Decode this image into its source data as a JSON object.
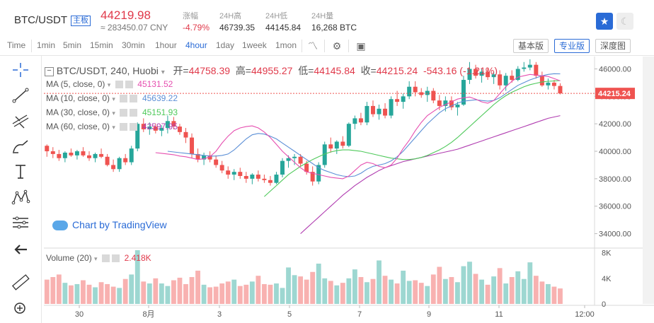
{
  "header": {
    "pair": "BTC/USDT",
    "badge": "主板",
    "price": "44219.98",
    "price_cny": "≈ 283450.07 CNY",
    "stats": [
      {
        "label": "涨幅",
        "value": "-4.79%"
      },
      {
        "label": "24H高",
        "value": "46739.35"
      },
      {
        "label": "24H低",
        "value": "44145.84"
      },
      {
        "label": "24H量",
        "value": "16,268 BTC"
      }
    ],
    "favorite_icon": "star-icon",
    "theme_icon": "moon-icon"
  },
  "toolbar": {
    "timeframes": [
      "Time",
      "1min",
      "5min",
      "15min",
      "30min",
      "1hour",
      "4hour",
      "1day",
      "1week",
      "1mon"
    ],
    "active_timeframe": "4hour",
    "views": [
      "基本版",
      "专业版",
      "深度图"
    ],
    "active_view": "专业版"
  },
  "sidebar": {
    "tools": [
      "crosshair-icon",
      "trendline-icon",
      "fib-icon",
      "brush-icon",
      "text-icon",
      "pattern-icon",
      "measure-icon",
      "back-icon",
      "ruler-icon",
      "zoom-icon"
    ]
  },
  "legend": {
    "symbol": "BTC/USDT, 240, Huobi",
    "open_label": "开=",
    "open": "44758.39",
    "high_label": "高=",
    "high": "44955.27",
    "low_label": "低=",
    "low": "44145.84",
    "close_label": "收=",
    "close": "44215.24",
    "change": "-543.16 (-1.21%)",
    "ma": [
      {
        "label": "MA (5, close, 0)",
        "value": "45131.52",
        "color": "#e64fb0"
      },
      {
        "label": "MA (10, close, 0)",
        "value": "45639.22",
        "color": "#5b8fd6"
      },
      {
        "label": "MA (30, close, 0)",
        "value": "45151.93",
        "color": "#4ec95a"
      },
      {
        "label": "MA (60, close, 0)",
        "value": "42597.95",
        "color": "#b03cb0"
      }
    ],
    "volume_label": "Volume (20)",
    "volume_value": "2.418K"
  },
  "watermark": "Chart by TradingView",
  "colors": {
    "up": "#26a69a",
    "down": "#ef5350",
    "accent": "#2a6bd6"
  },
  "chart_data": {
    "type": "candlestick",
    "y_axis": {
      "ticks": [
        "46000.00",
        "44000.00",
        "42000.00",
        "40000.00",
        "38000.00",
        "36000.00",
        "34000.00"
      ],
      "range": [
        33000,
        46900
      ]
    },
    "last_price_label": "44215.24",
    "x_axis": {
      "ticks": [
        "30",
        "8月",
        "3",
        "5",
        "7",
        "9",
        "11",
        "12:00"
      ]
    },
    "volume_axis": {
      "ticks": [
        "8K",
        "4K",
        "0"
      ],
      "range": [
        0,
        8400
      ]
    },
    "candles": [
      [
        40400,
        40500,
        39600,
        40000
      ],
      [
        40000,
        40300,
        39500,
        39800
      ],
      [
        39800,
        40100,
        39300,
        39500
      ],
      [
        39500,
        40000,
        39200,
        39900
      ],
      [
        39900,
        40200,
        39600,
        39700
      ],
      [
        39700,
        40100,
        39400,
        40000
      ],
      [
        40000,
        40300,
        39600,
        39700
      ],
      [
        39700,
        40000,
        39300,
        39500
      ],
      [
        39500,
        39900,
        39200,
        39800
      ],
      [
        39800,
        40200,
        39500,
        39600
      ],
      [
        39600,
        39800,
        38900,
        39000
      ],
      [
        39000,
        39400,
        38500,
        38700
      ],
      [
        38700,
        39600,
        38500,
        39500
      ],
      [
        39500,
        39800,
        39000,
        39200
      ],
      [
        39200,
        40400,
        39000,
        40200
      ],
      [
        40200,
        42100,
        40000,
        42000
      ],
      [
        42000,
        42400,
        41400,
        41600
      ],
      [
        41600,
        42100,
        41200,
        41800
      ],
      [
        41800,
        42000,
        41300,
        41500
      ],
      [
        41500,
        41900,
        41100,
        41700
      ],
      [
        41700,
        42600,
        41300,
        42200
      ],
      [
        42200,
        42500,
        41600,
        41800
      ],
      [
        41800,
        42000,
        41200,
        41400
      ],
      [
        41400,
        41700,
        40600,
        41000
      ],
      [
        41000,
        41300,
        39500,
        39800
      ],
      [
        39800,
        40200,
        39200,
        39400
      ],
      [
        39400,
        39900,
        39000,
        39700
      ],
      [
        39700,
        40000,
        39200,
        39400
      ],
      [
        39400,
        39700,
        38800,
        39000
      ],
      [
        39000,
        39300,
        38400,
        38600
      ],
      [
        38600,
        38900,
        38000,
        38300
      ],
      [
        38300,
        38700,
        37900,
        38500
      ],
      [
        38500,
        38800,
        38000,
        38200
      ],
      [
        38200,
        38500,
        37700,
        38000
      ],
      [
        38000,
        38400,
        37600,
        38300
      ],
      [
        38300,
        38600,
        37800,
        38000
      ],
      [
        38000,
        38300,
        37700,
        37900
      ],
      [
        37900,
        38200,
        37500,
        37700
      ],
      [
        37700,
        38500,
        37600,
        38300
      ],
      [
        38300,
        39500,
        38100,
        39300
      ],
      [
        39300,
        39700,
        38800,
        39500
      ],
      [
        39500,
        39800,
        39000,
        39600
      ],
      [
        39600,
        39800,
        38900,
        39100
      ],
      [
        39100,
        39300,
        38300,
        38500
      ],
      [
        38500,
        38900,
        37500,
        37800
      ],
      [
        37800,
        39200,
        37600,
        39000
      ],
      [
        39000,
        40700,
        38800,
        40500
      ],
      [
        40500,
        41000,
        39900,
        40200
      ],
      [
        40200,
        40800,
        39800,
        40700
      ],
      [
        40700,
        41100,
        40200,
        40400
      ],
      [
        40400,
        42100,
        40300,
        42000
      ],
      [
        42000,
        42600,
        41600,
        42400
      ],
      [
        42400,
        42800,
        41900,
        42100
      ],
      [
        42100,
        43600,
        41900,
        43300
      ],
      [
        43300,
        43700,
        42500,
        42700
      ],
      [
        42700,
        43400,
        42300,
        43100
      ],
      [
        43100,
        43500,
        42400,
        42600
      ],
      [
        42600,
        44000,
        42400,
        43800
      ],
      [
        43800,
        44400,
        43300,
        43600
      ],
      [
        43600,
        44200,
        43100,
        44000
      ],
      [
        44000,
        45100,
        43800,
        44700
      ],
      [
        44700,
        45100,
        44000,
        44300
      ],
      [
        44300,
        44600,
        43900,
        44100
      ],
      [
        44100,
        44700,
        43600,
        44400
      ],
      [
        44400,
        44600,
        43500,
        43700
      ],
      [
        43700,
        44100,
        43000,
        43300
      ],
      [
        43300,
        44000,
        42900,
        43700
      ],
      [
        43700,
        44000,
        43000,
        43200
      ],
      [
        43200,
        43600,
        42600,
        43400
      ],
      [
        43400,
        45500,
        43300,
        45200
      ],
      [
        45200,
        46500,
        44900,
        46000
      ],
      [
        46000,
        46300,
        45300,
        45500
      ],
      [
        45500,
        46000,
        45000,
        45800
      ],
      [
        45800,
        46100,
        45200,
        45400
      ],
      [
        45400,
        45800,
        44900,
        45600
      ],
      [
        45600,
        45900,
        44500,
        44800
      ],
      [
        44800,
        45700,
        44400,
        45500
      ],
      [
        45500,
        45900,
        45000,
        45200
      ],
      [
        45200,
        46200,
        45100,
        46000
      ],
      [
        46000,
        46500,
        45800,
        46100
      ],
      [
        46100,
        46700,
        45900,
        46300
      ],
      [
        46300,
        46500,
        45300,
        45500
      ],
      [
        45500,
        45800,
        44700,
        44800
      ],
      [
        44800,
        45300,
        44500,
        45000
      ],
      [
        45000,
        45200,
        44500,
        44758
      ],
      [
        44758,
        44955,
        44146,
        44215
      ]
    ],
    "volumes": [
      3800,
      4200,
      4600,
      3300,
      2900,
      3100,
      3700,
      3000,
      2600,
      3400,
      3100,
      2700,
      2500,
      3900,
      4600,
      8400,
      3500,
      3200,
      4000,
      3200,
      2800,
      3700,
      4100,
      3100,
      4200,
      5200,
      3000,
      2600,
      2700,
      3200,
      3500,
      3800,
      2800,
      3000,
      3500,
      4400,
      3100,
      3000,
      3200,
      2500,
      5700,
      4500,
      4300,
      3800,
      5000,
      6300,
      4000,
      3600,
      2900,
      3300,
      4000,
      5400,
      4200,
      3400,
      3900,
      6800,
      4400,
      3800,
      3200,
      5200,
      3600,
      3700,
      3300,
      2800,
      4600,
      5800,
      3900,
      4200,
      3400,
      5900,
      6600,
      4700,
      3800,
      3000,
      4300,
      5600,
      3200,
      4200,
      5100,
      3900,
      6500,
      4400,
      3500,
      3100,
      2700,
      2418
    ],
    "ma_series": {
      "ma5": [
        39900,
        39850,
        39800,
        39750,
        39650,
        39600,
        39500,
        39400,
        39450,
        39600,
        40000,
        40600,
        41100,
        41500,
        41700,
        41800,
        41850,
        41700,
        41400,
        41000,
        40500,
        40000,
        39600,
        39200,
        38800,
        38500,
        38400,
        38300,
        38200,
        38100,
        38050,
        38000,
        38200,
        38600,
        39000,
        39200,
        39100,
        38900,
        38800,
        39000,
        39500,
        40200,
        40800,
        41500,
        42100,
        42600,
        42900,
        43200,
        43400,
        43600,
        43800,
        43900,
        43950,
        43800,
        43600,
        43500,
        43700,
        44200,
        44700,
        45100,
        45400,
        45500,
        45600,
        45550,
        45500,
        45450,
        45300,
        45131
      ],
      "ma10": [
        40000,
        39950,
        39900,
        39850,
        39800,
        39750,
        39700,
        39650,
        39650,
        39700,
        39800,
        40100,
        40500,
        40900,
        41200,
        41300,
        41250,
        41100,
        40900,
        40600,
        40300,
        40000,
        39700,
        39400,
        39100,
        38800,
        38600,
        38450,
        38300,
        38200,
        38150,
        38200,
        38400,
        38700,
        38900,
        39000,
        39100,
        39300,
        39600,
        40000,
        40500,
        41000,
        41500,
        42000,
        42400,
        42800,
        43100,
        43300,
        43500,
        43650,
        43700,
        43750,
        43700,
        43650,
        43700,
        43900,
        44200,
        44500,
        44800,
        45000,
        45200,
        45350,
        45500,
        45600,
        45650,
        45639
      ],
      "ma30": [
        36700,
        37100,
        37500,
        37900,
        38300,
        38600,
        38900,
        39150,
        39400,
        39600,
        39800,
        39950,
        40050,
        40100,
        40100,
        40050,
        40000,
        39900,
        39800,
        39700,
        39600,
        39500,
        39450,
        39400,
        39400,
        39450,
        39550,
        39700,
        39900,
        40100,
        40350,
        40650,
        41000,
        41400,
        41800,
        42200,
        42600,
        43000,
        43400,
        43750,
        44050,
        44300,
        44500,
        44700,
        44850,
        44950,
        45050,
        45100,
        45120,
        45151
      ],
      "ma60": [
        34000,
        34400,
        34800,
        35200,
        35600,
        36000,
        36400,
        36800,
        37150,
        37500,
        37800,
        38100,
        38350,
        38600,
        38800,
        38950,
        39100,
        39250,
        39350,
        39450,
        39550,
        39650,
        39750,
        39850,
        39950,
        40050,
        40150,
        40300,
        40450,
        40600,
        40750,
        40900,
        41050,
        41200,
        41350,
        41500,
        41650,
        41800,
        41950,
        42100,
        42250,
        42400,
        42500,
        42597
      ]
    }
  }
}
